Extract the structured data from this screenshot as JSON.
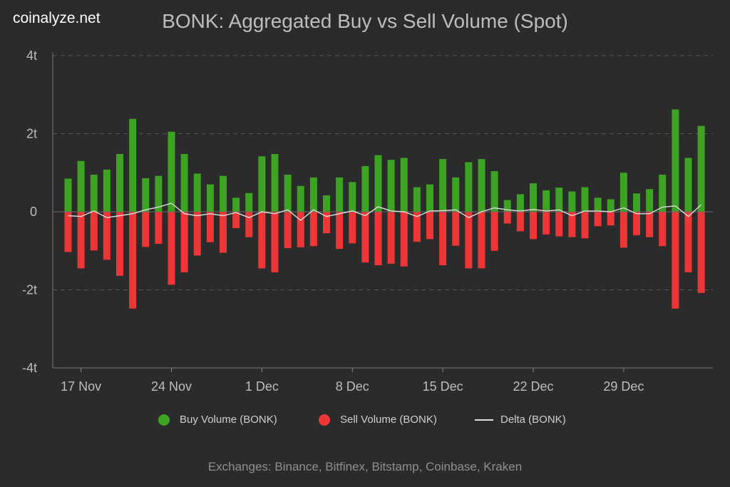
{
  "brand": "coinalyze.net",
  "footer": "Exchanges: Binance, Bitfinex, Bitstamp, Coinbase, Kraken",
  "colors": {
    "buy": "#3ca323",
    "sell": "#ef3636",
    "delta": "#dddddd",
    "grid": "#555555",
    "background": "#2b2b2b"
  },
  "chart_data": {
    "type": "bar",
    "title": "BONK: Aggregated Buy vs Sell Volume (Spot)",
    "unit": "t",
    "ylim": [
      -4,
      4
    ],
    "y_ticks": [
      {
        "value": 4,
        "label": "4t"
      },
      {
        "value": 2,
        "label": "2t"
      },
      {
        "value": 0,
        "label": "0"
      },
      {
        "value": -2,
        "label": "-2t"
      },
      {
        "value": -4,
        "label": "-4t"
      }
    ],
    "x_start": "2023-11-16",
    "x_ticks": [
      {
        "date": "2023-11-17",
        "label": "17 Nov"
      },
      {
        "date": "2023-11-24",
        "label": "24 Nov"
      },
      {
        "date": "2023-12-01",
        "label": "1 Dec"
      },
      {
        "date": "2023-12-08",
        "label": "8 Dec"
      },
      {
        "date": "2023-12-15",
        "label": "15 Dec"
      },
      {
        "date": "2023-12-22",
        "label": "22 Dec"
      },
      {
        "date": "2023-12-29",
        "label": "29 Dec"
      }
    ],
    "grid": true,
    "legend_position": "bottom",
    "series": [
      {
        "name": "Buy Volume (BONK)",
        "values": [
          0.85,
          1.3,
          0.95,
          1.08,
          1.48,
          2.38,
          0.86,
          0.92,
          2.05,
          1.48,
          0.98,
          0.7,
          0.92,
          0.36,
          0.48,
          1.42,
          1.48,
          0.95,
          0.66,
          0.88,
          0.42,
          0.88,
          0.76,
          1.17,
          1.45,
          1.33,
          1.38,
          0.63,
          0.7,
          1.35,
          0.88,
          1.27,
          1.35,
          1.04,
          0.3,
          0.45,
          0.73,
          0.55,
          0.62,
          0.52,
          0.63,
          0.36,
          0.32,
          1.0,
          0.47,
          0.58,
          0.95,
          2.62,
          1.38,
          2.2
        ]
      },
      {
        "name": "Sell Volume (BONK)",
        "values": [
          -1.03,
          -1.45,
          -0.99,
          -1.23,
          -1.64,
          -2.48,
          -0.9,
          -0.82,
          -1.87,
          -1.55,
          -1.12,
          -0.78,
          -1.05,
          -0.42,
          -0.65,
          -1.45,
          -1.55,
          -0.93,
          -0.91,
          -0.88,
          -0.55,
          -0.95,
          -0.81,
          -1.3,
          -1.37,
          -1.33,
          -1.4,
          -0.77,
          -0.7,
          -1.37,
          -0.87,
          -1.45,
          -1.45,
          -1.0,
          -0.3,
          -0.5,
          -0.7,
          -0.58,
          -0.63,
          -0.65,
          -0.68,
          -0.37,
          -0.35,
          -0.92,
          -0.6,
          -0.65,
          -0.88,
          -2.48,
          -1.55,
          -2.08
        ]
      },
      {
        "name": "Delta (BONK)",
        "values": [
          -0.1,
          -0.12,
          0.02,
          -0.15,
          -0.1,
          -0.05,
          0.05,
          0.12,
          0.22,
          -0.05,
          -0.1,
          -0.05,
          -0.1,
          -0.02,
          -0.15,
          0.0,
          -0.05,
          0.05,
          -0.22,
          0.05,
          -0.12,
          -0.05,
          0.02,
          -0.1,
          0.13,
          0.02,
          0.0,
          -0.12,
          0.02,
          0.03,
          0.05,
          -0.15,
          0.0,
          0.1,
          0.05,
          0.02,
          0.06,
          0.02,
          0.05,
          -0.1,
          0.02,
          0.02,
          0.0,
          0.1,
          -0.05,
          -0.05,
          0.12,
          0.15,
          -0.12,
          0.18
        ]
      }
    ]
  }
}
